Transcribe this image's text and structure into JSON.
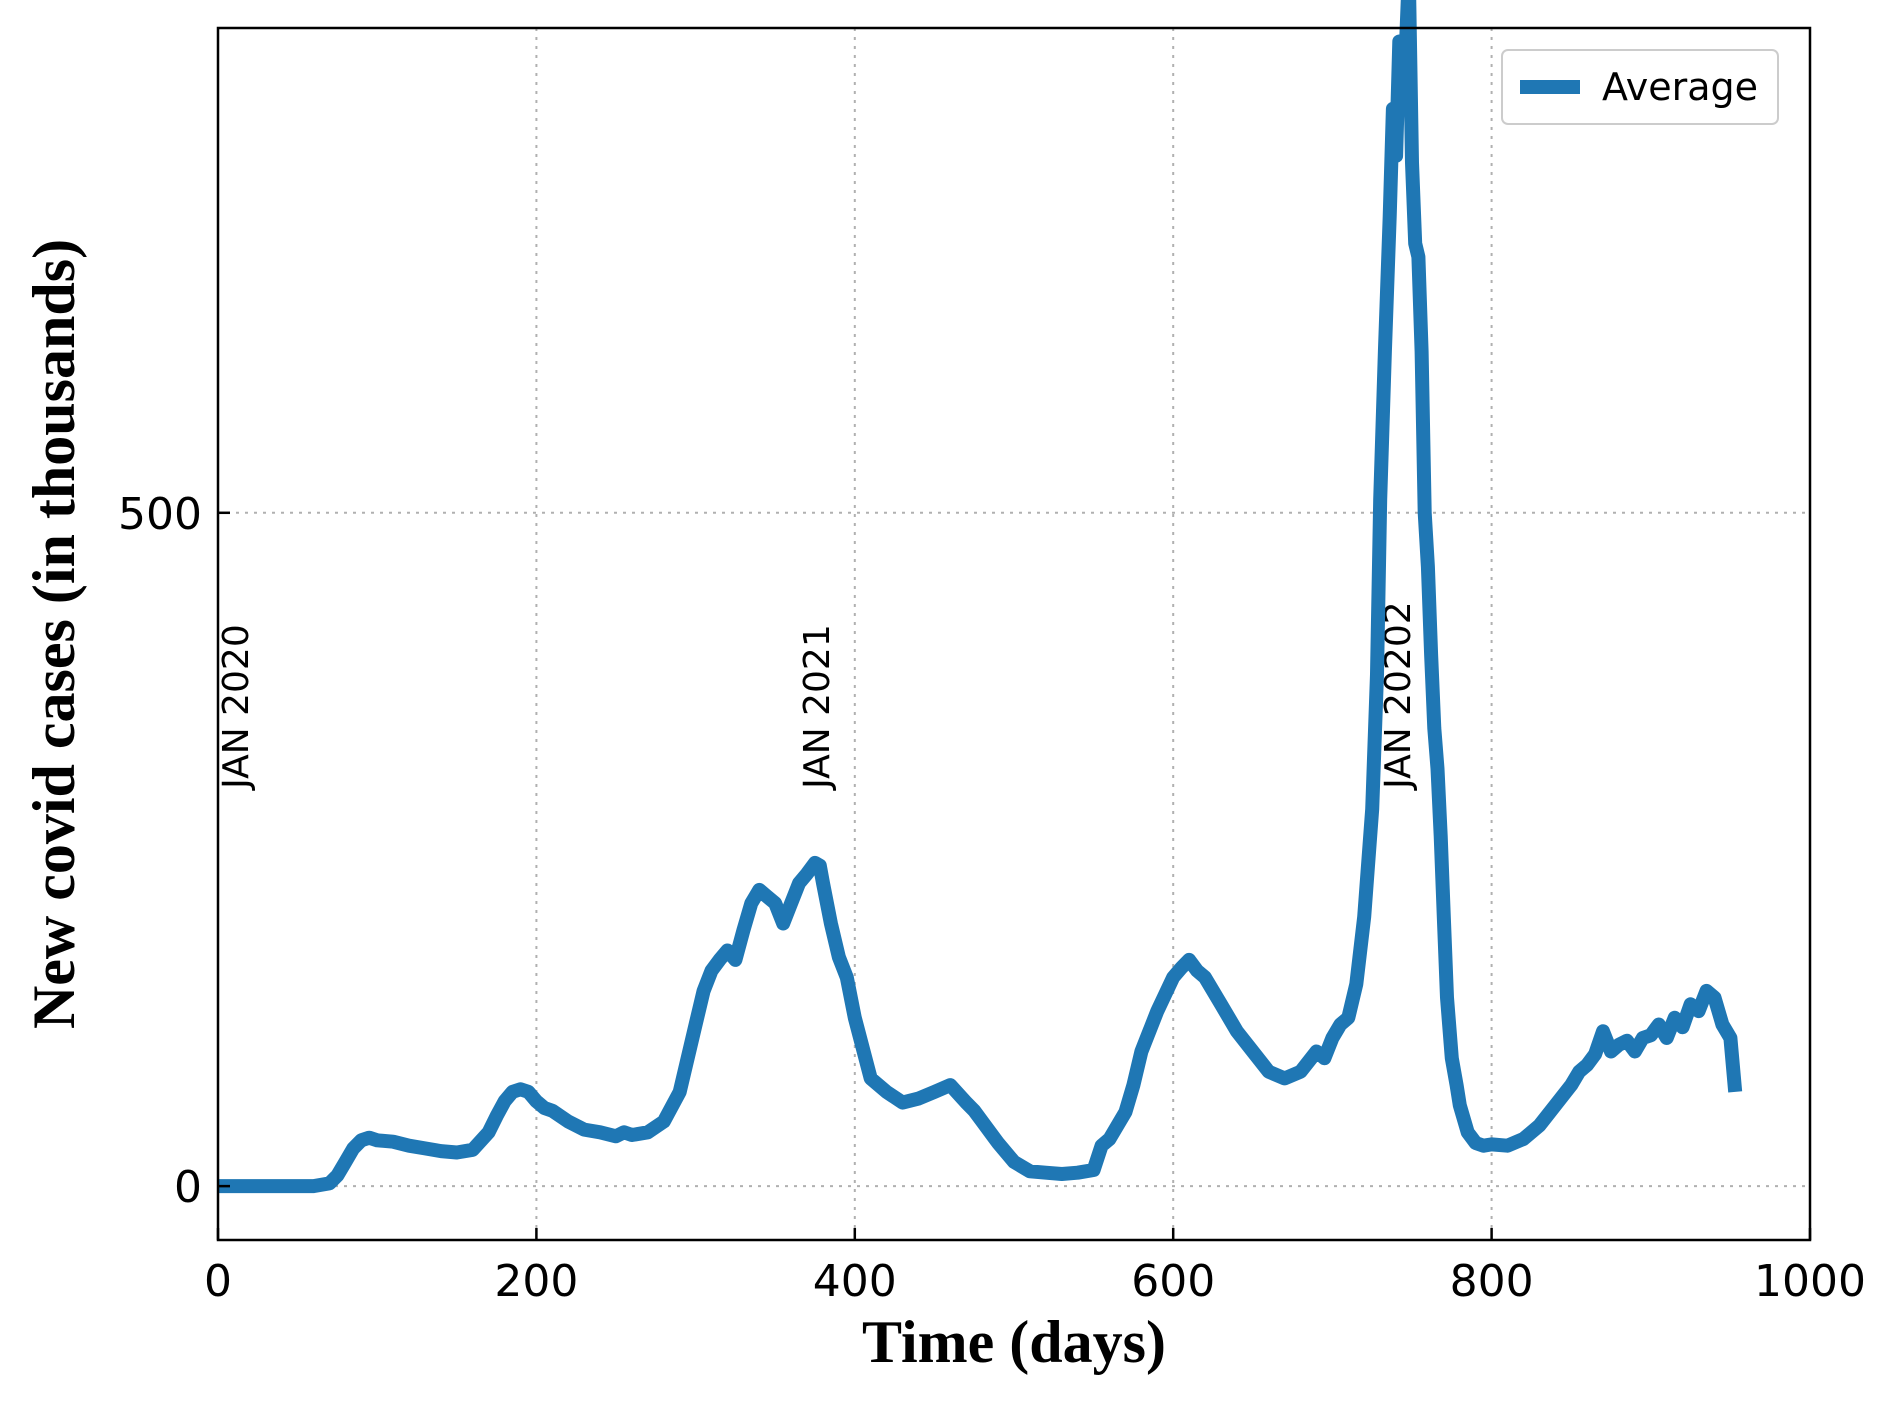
{
  "chart_data": {
    "type": "line",
    "xlabel": "Time (days)",
    "ylabel": "New covid cases (in thousands)",
    "xlim": [
      0,
      1000
    ],
    "ylim": [
      -40,
      860
    ],
    "xticks": [
      0,
      200,
      400,
      600,
      800,
      1000
    ],
    "yticks": [
      0,
      500
    ],
    "grid": true,
    "legend_position": "top-right",
    "colors": {
      "series": "#1f77b4",
      "grid": "#b0b0b0",
      "axis": "#000000"
    },
    "annotations": [
      {
        "text": "JAN 2020",
        "x": 20,
        "y": 295
      },
      {
        "text": "JAN 2021",
        "x": 385,
        "y": 295
      },
      {
        "text": "JAN 20202",
        "x": 750,
        "y": 295
      }
    ],
    "series": [
      {
        "name": "Average",
        "x": [
          0,
          20,
          40,
          60,
          70,
          75,
          80,
          85,
          90,
          95,
          100,
          110,
          120,
          130,
          140,
          150,
          160,
          170,
          175,
          180,
          185,
          190,
          195,
          200,
          205,
          210,
          220,
          230,
          240,
          250,
          255,
          260,
          270,
          280,
          290,
          300,
          305,
          310,
          315,
          320,
          325,
          330,
          335,
          340,
          345,
          350,
          355,
          360,
          365,
          370,
          375,
          378,
          380,
          385,
          390,
          395,
          400,
          410,
          420,
          430,
          440,
          450,
          460,
          470,
          475,
          480,
          490,
          500,
          510,
          520,
          530,
          540,
          550,
          555,
          560,
          570,
          575,
          580,
          590,
          600,
          605,
          610,
          615,
          620,
          630,
          640,
          650,
          660,
          670,
          680,
          690,
          695,
          700,
          705,
          710,
          715,
          720,
          725,
          728,
          730,
          733,
          736,
          738,
          740,
          742,
          744,
          746,
          748,
          750,
          752,
          754,
          756,
          758,
          760,
          762,
          764,
          766,
          768,
          770,
          772,
          775,
          778,
          780,
          785,
          790,
          795,
          800,
          810,
          820,
          830,
          840,
          850,
          855,
          860,
          865,
          870,
          875,
          880,
          885,
          890,
          895,
          900,
          905,
          910,
          915,
          920,
          925,
          930,
          935,
          940,
          945,
          950,
          953
        ],
        "y": [
          0,
          0,
          0,
          0,
          2,
          8,
          18,
          28,
          34,
          36,
          34,
          33,
          30,
          28,
          26,
          25,
          27,
          40,
          52,
          63,
          70,
          72,
          70,
          63,
          58,
          56,
          48,
          42,
          40,
          37,
          40,
          38,
          40,
          48,
          70,
          120,
          145,
          160,
          168,
          175,
          168,
          190,
          210,
          220,
          215,
          210,
          195,
          210,
          225,
          232,
          240,
          238,
          225,
          195,
          170,
          155,
          125,
          80,
          70,
          62,
          65,
          70,
          75,
          62,
          56,
          48,
          32,
          18,
          11,
          10,
          9,
          10,
          12,
          30,
          35,
          55,
          75,
          100,
          130,
          155,
          162,
          168,
          160,
          155,
          135,
          115,
          100,
          85,
          80,
          85,
          100,
          95,
          110,
          120,
          125,
          150,
          200,
          280,
          380,
          510,
          620,
          720,
          800,
          765,
          850,
          820,
          840,
          900,
          760,
          700,
          690,
          620,
          500,
          460,
          395,
          340,
          310,
          260,
          200,
          140,
          95,
          75,
          60,
          40,
          32,
          30,
          31,
          30,
          35,
          45,
          60,
          75,
          85,
          90,
          98,
          115,
          100,
          105,
          108,
          100,
          110,
          112,
          120,
          110,
          125,
          118,
          135,
          130,
          145,
          140,
          120,
          110,
          70
        ]
      }
    ]
  }
}
